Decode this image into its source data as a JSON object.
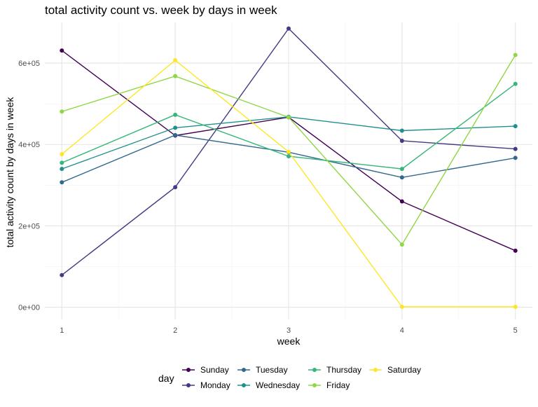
{
  "chart_data": {
    "type": "line",
    "title": "total activity count vs. week by days in week",
    "xlabel": "week",
    "ylabel": "total activity count by days in week",
    "x": [
      1,
      2,
      3,
      4,
      5
    ],
    "x_ticks": [
      "1",
      "2",
      "3",
      "4",
      "5"
    ],
    "xlim": [
      0.85,
      5.15
    ],
    "y_ticks": [
      {
        "value": 0,
        "label": "0e+00"
      },
      {
        "value": 200000,
        "label": "2e+05"
      },
      {
        "value": 400000,
        "label": "4e+05"
      },
      {
        "value": 600000,
        "label": "6e+05"
      }
    ],
    "ylim": [
      -30000,
      700000
    ],
    "grid": true,
    "legend_title": "day",
    "legend_position": "bottom",
    "series": [
      {
        "name": "Sunday",
        "color": "#440154",
        "values": [
          631000,
          422000,
          467000,
          260000,
          139000
        ]
      },
      {
        "name": "Monday",
        "color": "#443A83",
        "values": [
          79000,
          295000,
          685000,
          409000,
          389000
        ]
      },
      {
        "name": "Tuesday",
        "color": "#31688E",
        "values": [
          307000,
          423000,
          381000,
          319000,
          367000
        ]
      },
      {
        "name": "Wednesday",
        "color": "#21908C",
        "values": [
          340000,
          441000,
          468000,
          434000,
          445000
        ]
      },
      {
        "name": "Thursday",
        "color": "#35B779",
        "values": [
          355000,
          473000,
          371000,
          340000,
          549000
        ]
      },
      {
        "name": "Friday",
        "color": "#8FD744",
        "values": [
          481000,
          568000,
          467000,
          154000,
          620000
        ]
      },
      {
        "name": "Saturday",
        "color": "#FDE725",
        "values": [
          376000,
          607000,
          382000,
          1000,
          1000
        ]
      }
    ]
  }
}
